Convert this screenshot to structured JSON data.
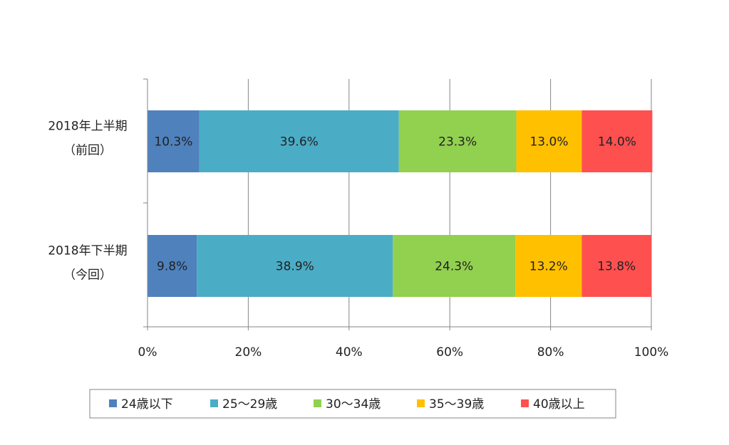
{
  "chart_data": {
    "type": "bar",
    "orientation": "horizontal",
    "stacked": "percent",
    "categories": [
      [
        "2018年上半期",
        "（前回）"
      ],
      [
        "2018年下半期",
        "（今回）"
      ]
    ],
    "series": [
      {
        "name": "24歳以下",
        "color": "#4f81bd",
        "values": [
          10.3,
          9.8
        ],
        "labels": [
          "10.3%",
          "9.8%"
        ]
      },
      {
        "name": "25～29歳",
        "color": "#4bacc6",
        "values": [
          39.6,
          38.9
        ],
        "labels": [
          "39.6%",
          "38.9%"
        ]
      },
      {
        "name": "30～34歳",
        "color": "#92d050",
        "values": [
          23.3,
          24.3
        ],
        "labels": [
          "23.3%",
          "24.3%"
        ]
      },
      {
        "name": "35～39歳",
        "color": "#ffc000",
        "values": [
          13.0,
          13.2
        ],
        "labels": [
          "13.0%",
          "13.2%"
        ]
      },
      {
        "name": "40歳以上",
        "color": "#ff5050",
        "values": [
          14.0,
          13.8
        ],
        "labels": [
          "14.0%",
          "13.8%"
        ]
      }
    ],
    "x_ticks": [
      "0%",
      "20%",
      "40%",
      "60%",
      "80%",
      "100%"
    ],
    "xlim": [
      0,
      100
    ],
    "grid": true,
    "legend_position": "bottom"
  }
}
